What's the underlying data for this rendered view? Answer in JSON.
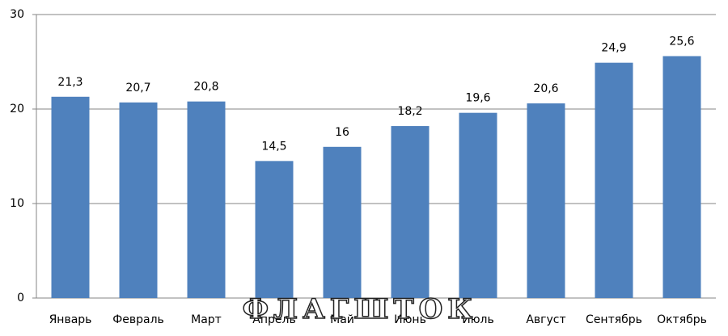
{
  "chart_data": {
    "type": "bar",
    "categories": [
      "Январь",
      "Февраль",
      "Март",
      "Апрель",
      "Май",
      "Июнь",
      "Июль",
      "Август",
      "Сентябрь",
      "Октябрь"
    ],
    "values": [
      21.3,
      20.7,
      20.8,
      14.5,
      16,
      18.2,
      19.6,
      20.6,
      24.9,
      25.6
    ],
    "value_labels": [
      "21,3",
      "20,7",
      "20,8",
      "14,5",
      "16",
      "18,2",
      "19,6",
      "20,6",
      "24,9",
      "25,6"
    ],
    "color": "#4f81bd",
    "ylim": [
      0,
      30
    ],
    "yticks": [
      0,
      10,
      20,
      30
    ],
    "grid": true,
    "watermark": "ФЛАГШТОК"
  }
}
